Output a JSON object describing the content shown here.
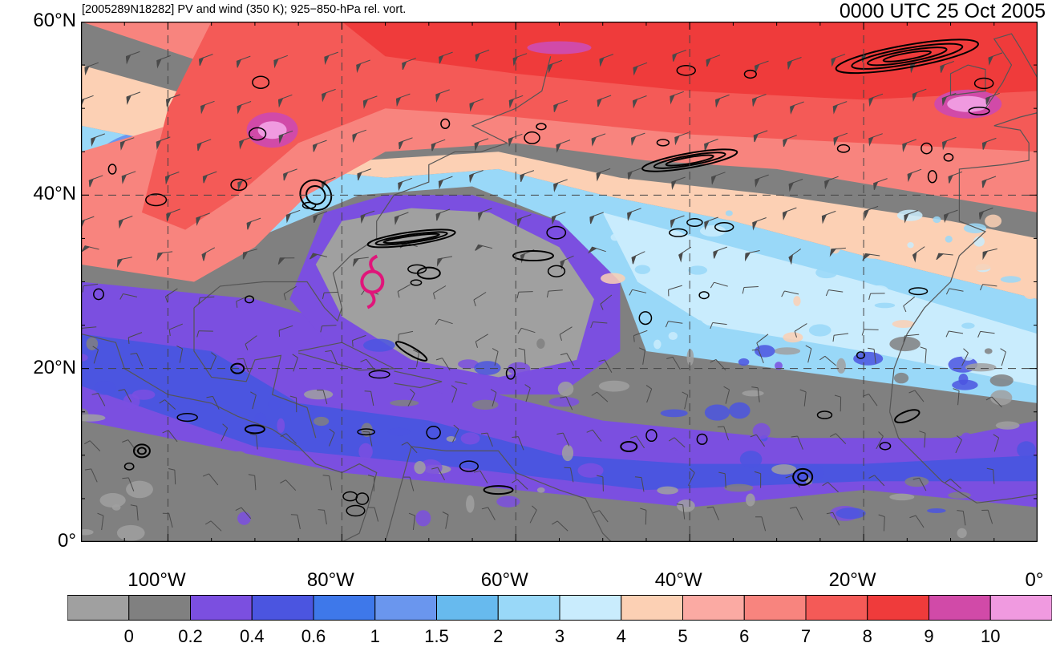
{
  "header": {
    "left_title": "[2005289N18282] PV and wind (350 K); 925−850-hPa rel. vort.",
    "right_title": "0000 UTC 25 Oct 2005"
  },
  "map": {
    "lon_range": [
      -110,
      0
    ],
    "lat_range": [
      0,
      60
    ],
    "lat_labels": [
      {
        "lat": 60,
        "text": "60°N"
      },
      {
        "lat": 40,
        "text": "40°N"
      },
      {
        "lat": 20,
        "text": "20°N"
      },
      {
        "lat": 0,
        "text": "0°"
      }
    ],
    "lon_labels": [
      {
        "lon": -100,
        "text": "100°W"
      },
      {
        "lon": -80,
        "text": "80°W"
      },
      {
        "lon": -60,
        "text": "60°W"
      },
      {
        "lon": -40,
        "text": "40°W"
      },
      {
        "lon": -20,
        "text": "20°W"
      },
      {
        "lon": 0,
        "text": "0°"
      }
    ],
    "storm_symbol": {
      "lon": -76.5,
      "lat": 30,
      "color": "#e0157a"
    }
  },
  "colorbar": {
    "colors": [
      "#a0a0a0",
      "#808080",
      "#7b4fe0",
      "#4b55e0",
      "#3e78ea",
      "#6a96ee",
      "#67baee",
      "#99d8f8",
      "#c9ecfd",
      "#fcd0b4",
      "#fbaaa3",
      "#f8847e",
      "#f45a57",
      "#ef3b3b",
      "#d14aa8",
      "#f09ae0"
    ],
    "labels": [
      "0",
      "0.2",
      "0.4",
      "0.6",
      "1",
      "1.5",
      "2",
      "3",
      "4",
      "5",
      "6",
      "7",
      "8",
      "9",
      "10"
    ]
  }
}
